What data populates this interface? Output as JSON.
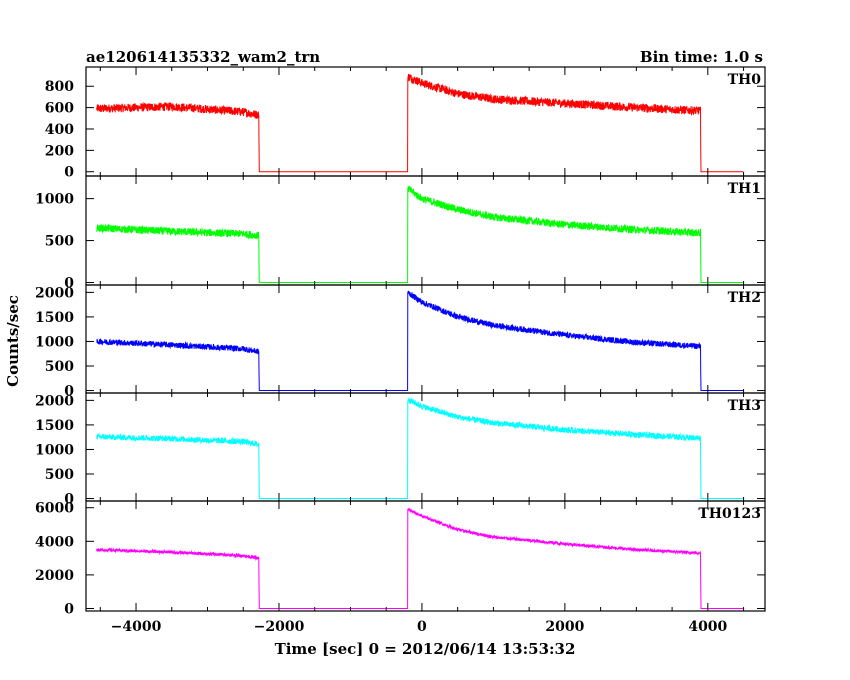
{
  "header": {
    "title": "ae120614135332_wam2_trn",
    "bin_time": "Bin time: 1.0 s"
  },
  "chart_data": {
    "type": "line",
    "title": "ae120614135332_wam2_trn",
    "subtitle": "Bin time: 1.0 s",
    "xlabel": "Time [sec] 0 = 2012/06/14 13:53:32",
    "ylabel": "Counts/sec",
    "xlim": [
      -4700,
      4800
    ],
    "xticks": [
      -4000,
      -2000,
      0,
      2000,
      4000
    ],
    "xtick_labels": [
      "−4000",
      "−2000",
      "0",
      "2000",
      "4000"
    ],
    "grid": false,
    "panels": [
      {
        "name": "TH0",
        "color": "#ff0000",
        "ylim": [
          -40,
          980
        ],
        "yticks": [
          0,
          200,
          400,
          600,
          800
        ],
        "ytick_labels": [
          "0",
          "200",
          "400",
          "600",
          "800"
        ],
        "noise": 40,
        "x": [
          -4550,
          -3500,
          -2500,
          -2280,
          -2278,
          -200,
          -198,
          0,
          500,
          1000,
          2000,
          3000,
          3900,
          3902,
          4500
        ],
        "y": [
          590,
          610,
          560,
          530,
          0,
          0,
          890,
          830,
          730,
          680,
          640,
          600,
          570,
          0,
          0
        ]
      },
      {
        "name": "TH1",
        "color": "#00ff00",
        "ylim": [
          -30,
          1270
        ],
        "yticks": [
          0,
          500,
          1000
        ],
        "ytick_labels": [
          "0",
          "500",
          "1000"
        ],
        "noise": 45,
        "x": [
          -4550,
          -3500,
          -2500,
          -2280,
          -2278,
          -200,
          -198,
          0,
          500,
          1000,
          2000,
          3000,
          3900,
          3902,
          4500
        ],
        "y": [
          650,
          610,
          580,
          560,
          0,
          0,
          1120,
          1000,
          870,
          780,
          690,
          630,
          590,
          0,
          0
        ]
      },
      {
        "name": "TH2",
        "color": "#0000ff",
        "ylim": [
          -50,
          2150
        ],
        "yticks": [
          0,
          500,
          1000,
          1500,
          2000
        ],
        "ytick_labels": [
          "0",
          "500",
          "1000",
          "1500",
          "2000"
        ],
        "noise": 60,
        "x": [
          -4550,
          -3500,
          -2500,
          -2280,
          -2278,
          -200,
          -198,
          0,
          500,
          1000,
          2000,
          3000,
          3900,
          3902,
          4500
        ],
        "y": [
          1000,
          930,
          850,
          790,
          0,
          0,
          2000,
          1800,
          1500,
          1330,
          1130,
          980,
          900,
          0,
          0
        ]
      },
      {
        "name": "TH3",
        "color": "#00ffff",
        "ylim": [
          -50,
          2150
        ],
        "yticks": [
          0,
          500,
          1000,
          1500,
          2000
        ],
        "ytick_labels": [
          "0",
          "500",
          "1000",
          "1500",
          "2000"
        ],
        "noise": 60,
        "x": [
          -4550,
          -3500,
          -2500,
          -2280,
          -2278,
          -200,
          -198,
          0,
          500,
          1000,
          2000,
          3000,
          3900,
          3902,
          4500
        ],
        "y": [
          1260,
          1220,
          1160,
          1100,
          0,
          0,
          2020,
          1880,
          1660,
          1540,
          1400,
          1300,
          1230,
          0,
          0
        ]
      },
      {
        "name": "TH0123",
        "color": "#ff00ff",
        "ylim": [
          -150,
          6400
        ],
        "yticks": [
          0,
          2000,
          4000,
          6000
        ],
        "ytick_labels": [
          "0",
          "2000",
          "4000",
          "6000"
        ],
        "noise": 90,
        "x": [
          -4550,
          -3500,
          -2500,
          -2280,
          -2278,
          -200,
          -198,
          0,
          500,
          1000,
          2000,
          3000,
          3900,
          3902,
          4500
        ],
        "y": [
          3500,
          3350,
          3150,
          2980,
          0,
          0,
          5900,
          5500,
          4700,
          4250,
          3850,
          3500,
          3300,
          0,
          0
        ]
      }
    ]
  }
}
